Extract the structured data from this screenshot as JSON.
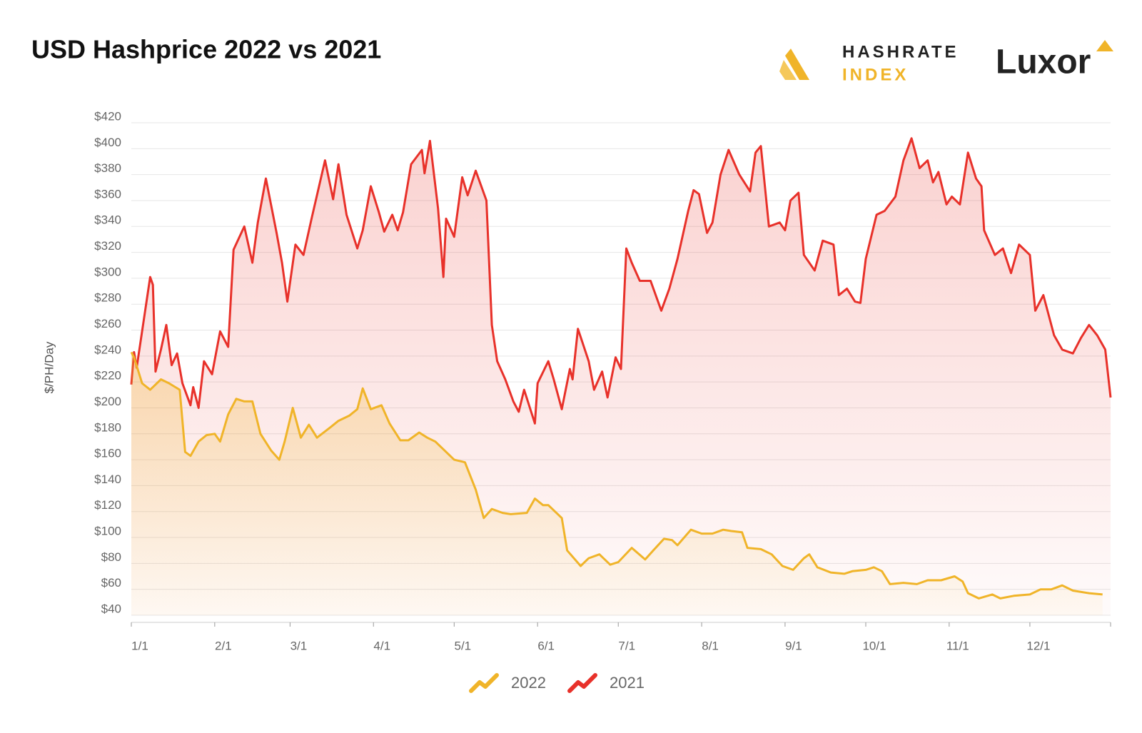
{
  "chart_data": {
    "type": "line",
    "title": "USD Hashprice 2022 vs 2021",
    "y_label": "$/PH/Day",
    "legend": "bottom",
    "grid": true,
    "area": true,
    "ylim": [
      40,
      420
    ],
    "yticks": [
      {
        "value": 40,
        "label": "$40"
      },
      {
        "value": 60,
        "label": "$60"
      },
      {
        "value": 80,
        "label": "$80"
      },
      {
        "value": 100,
        "label": "$100"
      },
      {
        "value": 120,
        "label": "$120"
      },
      {
        "value": 140,
        "label": "$140"
      },
      {
        "value": 160,
        "label": "$160"
      },
      {
        "value": 180,
        "label": "$180"
      },
      {
        "value": 200,
        "label": "$200"
      },
      {
        "value": 220,
        "label": "$220"
      },
      {
        "value": 240,
        "label": "$240"
      },
      {
        "value": 260,
        "label": "$260"
      },
      {
        "value": 280,
        "label": "$280"
      },
      {
        "value": 300,
        "label": "$300"
      },
      {
        "value": 320,
        "label": "$320"
      },
      {
        "value": 340,
        "label": "$340"
      },
      {
        "value": 360,
        "label": "$360"
      },
      {
        "value": 380,
        "label": "$380"
      },
      {
        "value": 400,
        "label": "$400"
      },
      {
        "value": 420,
        "label": "$420"
      }
    ],
    "xticks": [
      "1/1",
      "2/1",
      "3/1",
      "4/1",
      "5/1",
      "6/1",
      "7/1",
      "8/1",
      "9/1",
      "10/1",
      "11/1",
      "12/1"
    ],
    "series": [
      {
        "name": "2022",
        "color": "#f0b429",
        "x": [
          "1/1",
          "1/2",
          "1/5",
          "1/8",
          "1/12",
          "1/15",
          "1/19",
          "1/21",
          "1/23",
          "1/26",
          "1/29",
          "2/1",
          "2/3",
          "2/6",
          "2/9",
          "2/12",
          "2/15",
          "2/18",
          "2/22",
          "2/25",
          "2/27",
          "3/2",
          "3/5",
          "3/8",
          "3/11",
          "3/16",
          "3/19",
          "3/23",
          "3/26",
          "3/28",
          "3/31",
          "4/4",
          "4/7",
          "4/11",
          "4/14",
          "4/18",
          "4/21",
          "4/24",
          "4/28",
          "5/1",
          "5/5",
          "5/9",
          "5/12",
          "5/15",
          "5/19",
          "5/22",
          "5/28",
          "5/31",
          "6/3",
          "6/5",
          "6/10",
          "6/12",
          "6/17",
          "6/20",
          "6/24",
          "6/28",
          "7/1",
          "7/6",
          "7/11",
          "7/14",
          "7/18",
          "7/21",
          "7/23",
          "7/28",
          "8/1",
          "8/5",
          "8/9",
          "8/12",
          "8/16",
          "8/18",
          "8/23",
          "8/27",
          "8/31",
          "9/4",
          "9/8",
          "9/10",
          "9/13",
          "9/18",
          "9/23",
          "9/26",
          "10/1",
          "10/4",
          "10/7",
          "10/10",
          "10/15",
          "10/20",
          "10/24",
          "10/29",
          "11/3",
          "11/6",
          "11/8",
          "11/12",
          "11/17",
          "11/20",
          "11/25",
          "12/1",
          "12/5",
          "12/9",
          "12/13",
          "12/17",
          "12/23",
          "12/28"
        ],
        "values": [
          243,
          239,
          219,
          214,
          222,
          219,
          214,
          166,
          163,
          174,
          179,
          180,
          174,
          195,
          207,
          205,
          205,
          180,
          167,
          160,
          174,
          200,
          177,
          187,
          177,
          185,
          190,
          194,
          199,
          215,
          199,
          202,
          188,
          175,
          175,
          181,
          177,
          174,
          166,
          160,
          158,
          137,
          115,
          122,
          119,
          118,
          119,
          130,
          125,
          125,
          115,
          90,
          78,
          84,
          87,
          79,
          81,
          92,
          83,
          90,
          99,
          98,
          94,
          106,
          103,
          103,
          106,
          105,
          104,
          92,
          91,
          87,
          78,
          75,
          84,
          87,
          77,
          73,
          72,
          74,
          75,
          77,
          74,
          64,
          65,
          64,
          67,
          67,
          70,
          66,
          57,
          53,
          56,
          53,
          55,
          56,
          60,
          60,
          63,
          59,
          57,
          56
        ]
      },
      {
        "name": "2021",
        "color": "#e8312a",
        "x": [
          "1/1",
          "1/2",
          "1/3",
          "1/8",
          "1/9",
          "1/10",
          "1/12",
          "1/14",
          "1/16",
          "1/18",
          "1/20",
          "1/23",
          "1/24",
          "1/26",
          "1/28",
          "1/31",
          "2/3",
          "2/6",
          "2/8",
          "2/12",
          "2/15",
          "2/17",
          "2/20",
          "2/24",
          "2/26",
          "2/28",
          "3/3",
          "3/6",
          "3/9",
          "3/14",
          "3/17",
          "3/19",
          "3/22",
          "3/26",
          "3/28",
          "3/31",
          "4/3",
          "4/5",
          "4/8",
          "4/10",
          "4/12",
          "4/15",
          "4/19",
          "4/20",
          "4/22",
          "4/25",
          "4/27",
          "4/28",
          "5/1",
          "5/4",
          "5/6",
          "5/9",
          "5/13",
          "5/15",
          "5/17",
          "5/20",
          "5/23",
          "5/25",
          "5/27",
          "5/31",
          "6/1",
          "6/5",
          "6/7",
          "6/10",
          "6/13",
          "6/14",
          "6/16",
          "6/20",
          "6/22",
          "6/25",
          "6/27",
          "6/30",
          "7/2",
          "7/4",
          "7/6",
          "7/9",
          "7/13",
          "7/17",
          "7/20",
          "7/23",
          "7/27",
          "7/29",
          "7/31",
          "8/3",
          "8/5",
          "8/8",
          "8/11",
          "8/15",
          "8/19",
          "8/21",
          "8/23",
          "8/26",
          "8/30",
          "9/1",
          "9/3",
          "9/6",
          "9/8",
          "9/12",
          "9/15",
          "9/19",
          "9/21",
          "9/24",
          "9/27",
          "9/29",
          "10/1",
          "10/5",
          "10/8",
          "10/12",
          "10/15",
          "10/18",
          "10/21",
          "10/24",
          "10/26",
          "10/28",
          "10/31",
          "11/2",
          "11/5",
          "11/8",
          "11/11",
          "11/13",
          "11/14",
          "11/18",
          "11/21",
          "11/24",
          "11/27",
          "12/1",
          "12/3",
          "12/6",
          "12/10",
          "12/13",
          "12/17",
          "12/20",
          "12/23",
          "12/26",
          "12/29",
          "12/31"
        ],
        "values": [
          218,
          243,
          231,
          301,
          295,
          228,
          245,
          264,
          233,
          242,
          219,
          202,
          216,
          200,
          236,
          226,
          259,
          247,
          322,
          340,
          312,
          343,
          377,
          335,
          312,
          282,
          326,
          318,
          346,
          391,
          361,
          388,
          349,
          323,
          337,
          371,
          351,
          336,
          349,
          337,
          351,
          388,
          399,
          381,
          406,
          354,
          301,
          346,
          332,
          378,
          364,
          383,
          360,
          264,
          236,
          222,
          205,
          197,
          214,
          188,
          219,
          236,
          222,
          199,
          230,
          222,
          261,
          236,
          214,
          228,
          208,
          239,
          230,
          323,
          312,
          298,
          298,
          275,
          292,
          315,
          352,
          368,
          365,
          335,
          343,
          380,
          399,
          380,
          367,
          397,
          402,
          340,
          343,
          337,
          360,
          366,
          318,
          306,
          329,
          326,
          287,
          292,
          282,
          281,
          315,
          349,
          352,
          363,
          391,
          408,
          385,
          391,
          374,
          382,
          357,
          363,
          357,
          397,
          377,
          371,
          337,
          318,
          323,
          304,
          326,
          318,
          275,
          287,
          256,
          245,
          242,
          254,
          264,
          256,
          245,
          208
        ]
      }
    ]
  },
  "logos": {
    "hashrate": "HASHRATE",
    "index": "INDEX",
    "luxor": "Luxor"
  }
}
